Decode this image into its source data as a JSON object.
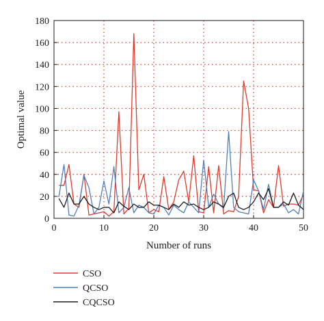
{
  "chart_data": {
    "type": "line",
    "xlabel": "Number of runs",
    "ylabel": "Optimal value",
    "xlim": [
      0,
      50
    ],
    "ylim": [
      0,
      180
    ],
    "xticks": [
      0,
      10,
      20,
      30,
      40,
      50
    ],
    "yticks": [
      0,
      20,
      40,
      60,
      80,
      100,
      120,
      140,
      160,
      180
    ],
    "grid": true,
    "legend_position": "bottom-left",
    "x": [
      1,
      2,
      3,
      4,
      5,
      6,
      7,
      8,
      9,
      10,
      11,
      12,
      13,
      14,
      15,
      16,
      17,
      18,
      19,
      20,
      21,
      22,
      23,
      24,
      25,
      26,
      27,
      28,
      29,
      30,
      31,
      32,
      33,
      34,
      35,
      36,
      37,
      38,
      39,
      40,
      41,
      42,
      43,
      44,
      45,
      46,
      47,
      48,
      49,
      50
    ],
    "series": [
      {
        "name": "CSO",
        "color": "#e0382b",
        "values": [
          30,
          30,
          49,
          13,
          10,
          40,
          3,
          4,
          5,
          6,
          2,
          6,
          97,
          4,
          9,
          168,
          26,
          40,
          5,
          8,
          6,
          38,
          8,
          15,
          35,
          43,
          15,
          57,
          6,
          5,
          47,
          5,
          48,
          4,
          7,
          6,
          20,
          125,
          100,
          26,
          25,
          5,
          17,
          10,
          48,
          11,
          13,
          13,
          12,
          22
        ]
      },
      {
        "name": "QCSO",
        "color": "#4f7fbf",
        "values": [
          20,
          49,
          3,
          2,
          12,
          39,
          28,
          4,
          10,
          34,
          13,
          47,
          5,
          10,
          28,
          5,
          12,
          10,
          5,
          4,
          12,
          10,
          3,
          12,
          8,
          5,
          15,
          10,
          5,
          53,
          10,
          22,
          13,
          9,
          79,
          10,
          6,
          5,
          4,
          35,
          25,
          8,
          31,
          10,
          10,
          13,
          5,
          8,
          4,
          25
        ]
      },
      {
        "name": "CQCSO",
        "color": "#1a1a1a",
        "values": [
          18,
          10,
          23,
          13,
          13,
          20,
          13,
          10,
          8,
          10,
          10,
          5,
          15,
          11,
          8,
          13,
          10,
          10,
          15,
          12,
          12,
          10,
          8,
          13,
          10,
          15,
          12,
          13,
          10,
          8,
          10,
          15,
          13,
          10,
          20,
          23,
          10,
          8,
          10,
          15,
          23,
          17,
          27,
          10,
          10,
          15,
          12,
          23,
          12,
          8
        ]
      }
    ]
  }
}
